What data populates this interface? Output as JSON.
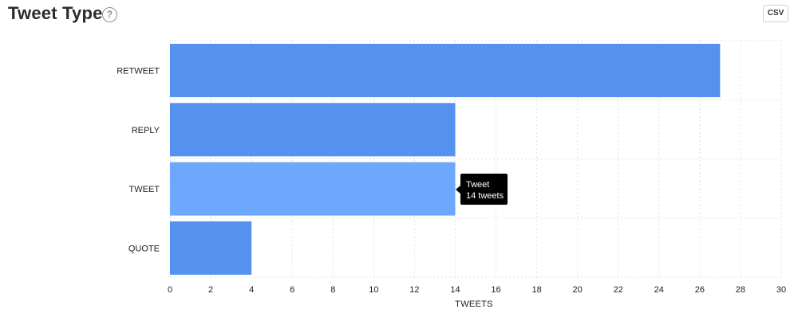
{
  "header": {
    "title": "Tweet Type",
    "help_icon": "?",
    "csv_label": "CSV"
  },
  "colors": {
    "bar": "#5592ef",
    "bar_highlight": "#6ea8fd",
    "grid": "#e2e2e2"
  },
  "chart_data": {
    "type": "bar",
    "orientation": "horizontal",
    "categories": [
      "RETWEET",
      "REPLY",
      "TWEET",
      "QUOTE"
    ],
    "values": [
      27,
      14,
      14,
      4
    ],
    "xlabel": "TWEETS",
    "ylabel": "",
    "xlim": [
      0,
      30
    ],
    "xticks": [
      0,
      2,
      4,
      6,
      8,
      10,
      12,
      14,
      16,
      18,
      20,
      22,
      24,
      26,
      28,
      30
    ],
    "grid": true,
    "highlighted_category": "TWEET"
  },
  "tooltip": {
    "title": "Tweet",
    "value_text": "14 tweets"
  }
}
